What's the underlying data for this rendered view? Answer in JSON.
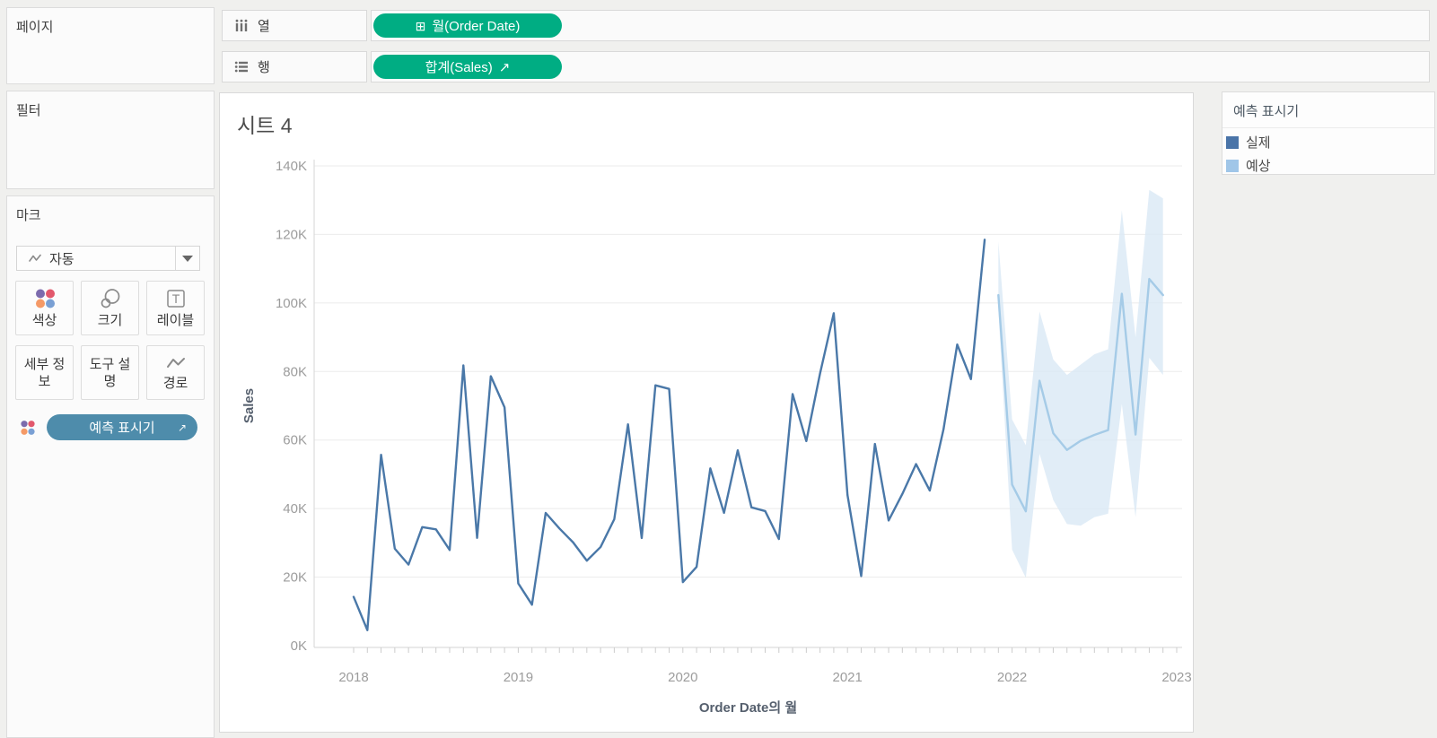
{
  "shelves": {
    "pages_label": "페이지",
    "filters_label": "필터",
    "columns": {
      "label": "열",
      "pill": "월(Order Date)",
      "pill_icon": "⊞"
    },
    "rows": {
      "label": "행",
      "pill": "합계(Sales)",
      "pill_icon": "↗"
    },
    "pill_color": "#00ad83"
  },
  "marks": {
    "label": "마크",
    "type_label": "자동",
    "buttons": [
      {
        "label": "색상",
        "icon": "color-dots-icon"
      },
      {
        "label": "크기",
        "icon": "size-circles-icon"
      },
      {
        "label": "레이블",
        "icon": "label-t-icon"
      },
      {
        "label": "세부 정보",
        "icon": "none"
      },
      {
        "label": "도구 설명",
        "icon": "none"
      },
      {
        "label": "경로",
        "icon": "path-wave-icon"
      }
    ],
    "forecast_pill": {
      "label": "예측 표시기",
      "color": "#4e8cab",
      "icon": "↗"
    },
    "color_dots": [
      "#7c6bad",
      "#e2586c",
      "#f59a67",
      "#7aa0d4"
    ]
  },
  "legend": {
    "title": "예측 표시기",
    "items": [
      {
        "label": "실제",
        "color": "#4a74a8"
      },
      {
        "label": "예상",
        "color": "#a0c6e8"
      }
    ]
  },
  "chart_data": {
    "type": "line",
    "title": "시트 4",
    "xlabel": "Order Date의 월",
    "ylabel": "Sales",
    "ylim": [
      0,
      140000
    ],
    "ytick_step": 20000,
    "ytick_labels": [
      "0K",
      "20K",
      "40K",
      "60K",
      "80K",
      "100K",
      "120K",
      "140K"
    ],
    "x_year_labels": [
      "2018",
      "2019",
      "2020",
      "2021",
      "2022",
      "2023"
    ],
    "months_total": 61,
    "grid": "horizontal",
    "legend_position": "right",
    "series": [
      {
        "name": "실제",
        "color": "#4a78a8",
        "start_index": 0,
        "values": [
          14237,
          4520,
          55691,
          28295,
          23648,
          34595,
          33946,
          27909,
          81777,
          31453,
          78629,
          69546,
          18174,
          11951,
          38726,
          34195,
          30131,
          24797,
          28765,
          36898,
          64595,
          31404,
          75973,
          74920,
          18542,
          22979,
          51716,
          38750,
          56988,
          40344,
          39262,
          31115,
          73410,
          59688,
          79412,
          96999,
          43971,
          20301,
          58872,
          36522,
          44261,
          52982,
          45264,
          63121,
          87867,
          77777,
          118448
        ]
      },
      {
        "name": "예상",
        "color": "#a5cbe7",
        "band_color": "#d9e8f5",
        "start_index": 47,
        "values": [
          102290,
          47000,
          39200,
          77300,
          62000,
          57100,
          59800,
          61500,
          62900,
          102700,
          61600,
          107000,
          102300
        ],
        "upper": [
          118000,
          66000,
          58500,
          97500,
          83500,
          79000,
          82000,
          85000,
          86500,
          127000,
          90000,
          133000,
          130500
        ],
        "lower": [
          98000,
          28000,
          19800,
          56000,
          42500,
          35500,
          35000,
          37500,
          38500,
          70500,
          37500,
          84000,
          79000
        ]
      }
    ]
  }
}
